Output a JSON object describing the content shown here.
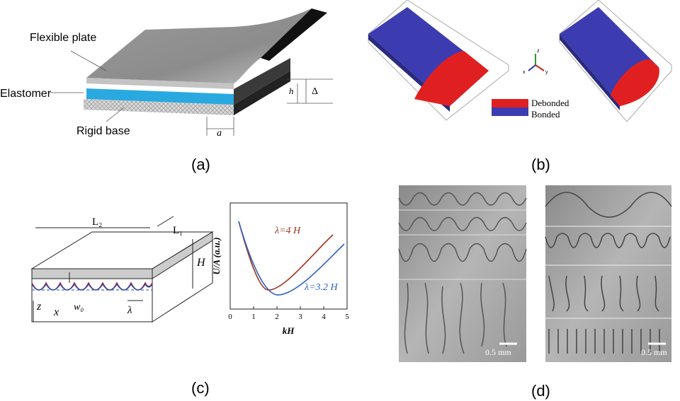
{
  "panels": [
    {
      "label": "(a)",
      "texts": {
        "flexible_plate": "Flexible plate",
        "elastomer": "Elastomer",
        "rigid_base": "Rigid base",
        "h": "h",
        "delta": "Δ",
        "a": "a"
      }
    },
    {
      "label": "(b)",
      "legend": [
        "Debonded",
        "Bonded"
      ],
      "axes": [
        "z",
        "x",
        "y"
      ]
    },
    {
      "label": "(c)",
      "diagram": {
        "l2": "L₂",
        "l1": "L₁",
        "h": "H",
        "z": "z",
        "x": "x",
        "w0": "w₀",
        "lambda": "λ"
      },
      "plot": {
        "ylabel": "U/A (a.u.)",
        "xlabel": "kH",
        "xticks": [
          0,
          1,
          2,
          3,
          4,
          5
        ],
        "curve_labels": [
          "λ=4 H",
          "λ=3.2 H"
        ]
      }
    },
    {
      "label": "(d)",
      "scale_bars": [
        "0.5 mm",
        "0.5 mm"
      ]
    }
  ]
}
